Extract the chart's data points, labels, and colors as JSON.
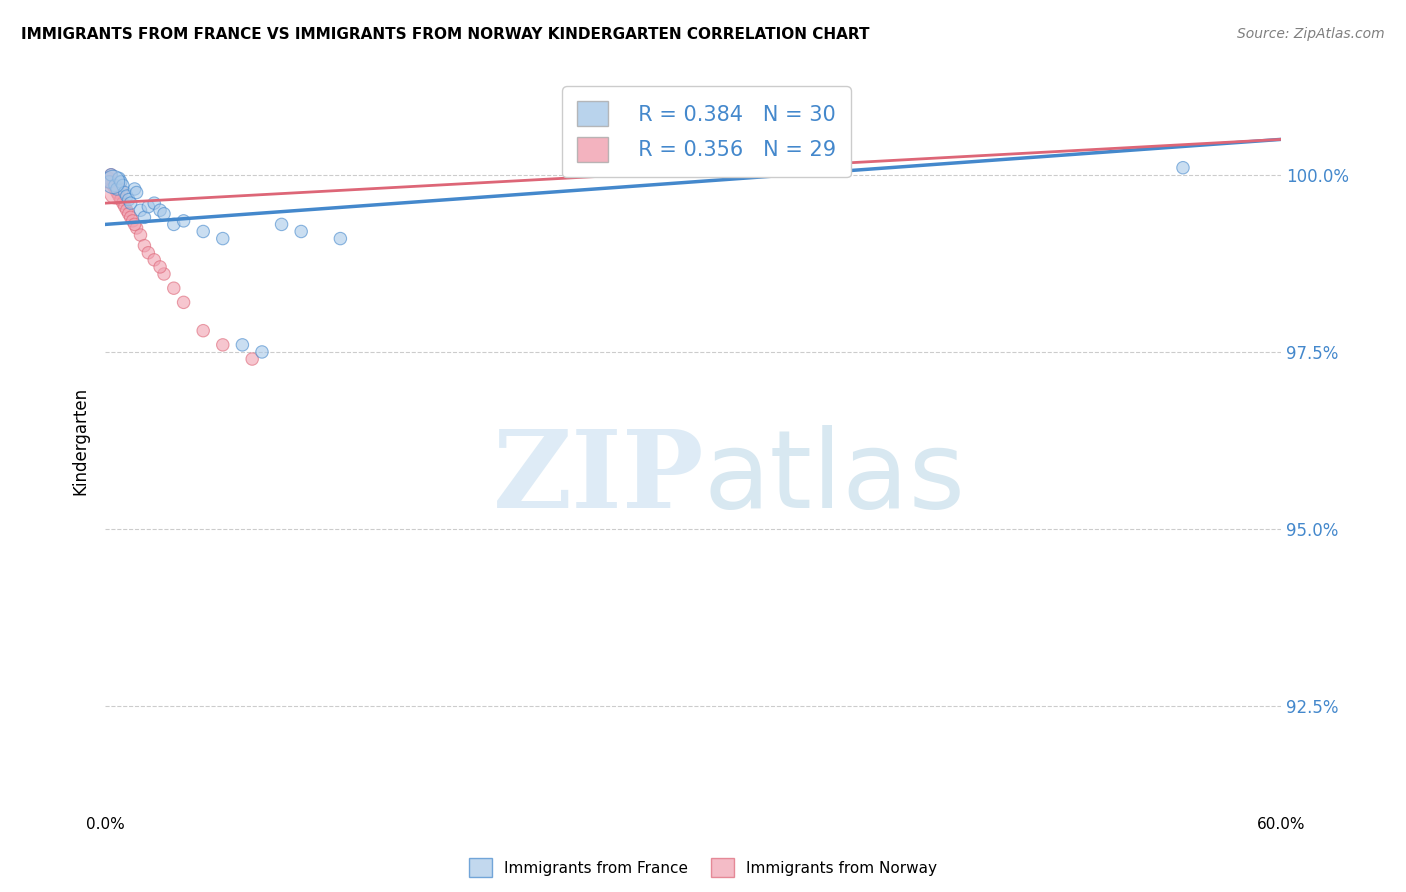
{
  "title": "IMMIGRANTS FROM FRANCE VS IMMIGRANTS FROM NORWAY KINDERGARTEN CORRELATION CHART",
  "source": "Source: ZipAtlas.com",
  "ylabel": "Kindergarten",
  "yticks": [
    92.5,
    95.0,
    97.5,
    100.0
  ],
  "ytick_labels": [
    "92.5%",
    "95.0%",
    "97.5%",
    "100.0%"
  ],
  "xlim": [
    0.0,
    60.0
  ],
  "ylim": [
    91.0,
    101.5
  ],
  "legend_france_R": "R = 0.384",
  "legend_france_N": "N = 30",
  "legend_norway_R": "R = 0.356",
  "legend_norway_N": "N = 29",
  "france_color": "#a8c8e8",
  "norway_color": "#f0a0b0",
  "france_line_color": "#4488cc",
  "norway_line_color": "#dd6677",
  "france_scatter_x": [
    0.2,
    0.3,
    0.5,
    0.6,
    0.7,
    0.8,
    0.9,
    1.0,
    1.1,
    1.2,
    1.3,
    1.5,
    1.6,
    1.8,
    2.0,
    2.2,
    2.5,
    2.8,
    3.0,
    3.5,
    4.0,
    5.0,
    6.0,
    7.0,
    8.0,
    9.0,
    10.0,
    12.0,
    55.0,
    0.4
  ],
  "france_scatter_y": [
    99.9,
    100.0,
    99.85,
    99.8,
    99.95,
    99.9,
    99.85,
    99.75,
    99.7,
    99.65,
    99.6,
    99.8,
    99.75,
    99.5,
    99.4,
    99.55,
    99.6,
    99.5,
    99.45,
    99.3,
    99.35,
    99.2,
    99.1,
    97.6,
    97.5,
    99.3,
    99.2,
    99.1,
    100.1,
    99.9
  ],
  "france_scatter_size": [
    80,
    80,
    80,
    80,
    80,
    80,
    80,
    80,
    80,
    80,
    80,
    80,
    80,
    80,
    80,
    80,
    80,
    80,
    80,
    80,
    80,
    80,
    80,
    80,
    80,
    80,
    80,
    80,
    80,
    280
  ],
  "norway_scatter_x": [
    0.1,
    0.2,
    0.3,
    0.4,
    0.5,
    0.6,
    0.7,
    0.8,
    0.9,
    1.0,
    1.1,
    1.2,
    1.3,
    1.4,
    1.6,
    1.8,
    2.0,
    2.2,
    2.5,
    3.0,
    3.5,
    4.0,
    5.0,
    6.0,
    7.5,
    1.5,
    2.8,
    0.25,
    0.55
  ],
  "norway_scatter_y": [
    99.9,
    99.95,
    100.0,
    99.85,
    99.8,
    99.75,
    99.7,
    99.65,
    99.6,
    99.55,
    99.5,
    99.45,
    99.4,
    99.35,
    99.25,
    99.15,
    99.0,
    98.9,
    98.8,
    98.6,
    98.4,
    98.2,
    97.8,
    97.6,
    97.4,
    99.3,
    98.7,
    99.9,
    99.75
  ],
  "norway_scatter_size": [
    80,
    80,
    80,
    80,
    80,
    80,
    80,
    80,
    80,
    80,
    80,
    80,
    80,
    80,
    80,
    80,
    80,
    80,
    80,
    80,
    80,
    80,
    80,
    80,
    80,
    80,
    80,
    80,
    280
  ],
  "france_trend_x": [
    0.0,
    60.0
  ],
  "france_trend_y": [
    99.3,
    100.5
  ],
  "norway_trend_x": [
    0.0,
    60.0
  ],
  "norway_trend_y": [
    99.6,
    100.5
  ],
  "background_color": "#ffffff",
  "grid_color": "#cccccc"
}
